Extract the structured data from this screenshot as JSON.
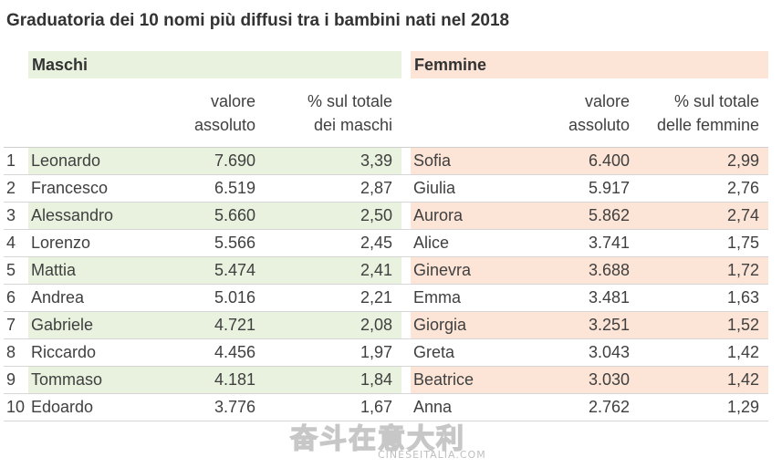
{
  "title": "Graduatoria dei 10 nomi più diffusi tra i bambini nati nel 2018",
  "sections": {
    "males": "Maschi",
    "females": "Femmine"
  },
  "columns": {
    "males_abs": [
      "valore",
      "assoluto"
    ],
    "males_pct": [
      "% sul totale",
      "dei maschi"
    ],
    "females_abs": [
      "valore",
      "assoluto"
    ],
    "females_pct": [
      "% sul totale",
      "delle femmine"
    ]
  },
  "rows": [
    {
      "rank": "1",
      "male_name": "Leonardo",
      "male_abs": "7.690",
      "male_pct": "3,39",
      "female_name": "Sofia",
      "female_abs": "6.400",
      "female_pct": "2,99"
    },
    {
      "rank": "2",
      "male_name": "Francesco",
      "male_abs": "6.519",
      "male_pct": "2,87",
      "female_name": "Giulia",
      "female_abs": "5.917",
      "female_pct": "2,76"
    },
    {
      "rank": "3",
      "male_name": "Alessandro",
      "male_abs": "5.660",
      "male_pct": "2,50",
      "female_name": "Aurora",
      "female_abs": "5.862",
      "female_pct": "2,74"
    },
    {
      "rank": "4",
      "male_name": "Lorenzo",
      "male_abs": "5.566",
      "male_pct": "2,45",
      "female_name": "Alice",
      "female_abs": "3.741",
      "female_pct": "1,75"
    },
    {
      "rank": "5",
      "male_name": "Mattia",
      "male_abs": "5.474",
      "male_pct": "2,41",
      "female_name": "Ginevra",
      "female_abs": "3.688",
      "female_pct": "1,72"
    },
    {
      "rank": "6",
      "male_name": "Andrea",
      "male_abs": "5.016",
      "male_pct": "2,21",
      "female_name": "Emma",
      "female_abs": "3.481",
      "female_pct": "1,63"
    },
    {
      "rank": "7",
      "male_name": "Gabriele",
      "male_abs": "4.721",
      "male_pct": "2,08",
      "female_name": "Giorgia",
      "female_abs": "3.251",
      "female_pct": "1,52"
    },
    {
      "rank": "8",
      "male_name": "Riccardo",
      "male_abs": "4.456",
      "male_pct": "1,97",
      "female_name": "Greta",
      "female_abs": "3.043",
      "female_pct": "1,42"
    },
    {
      "rank": "9",
      "male_name": "Tommaso",
      "male_abs": "4.181",
      "male_pct": "1,84",
      "female_name": "Beatrice",
      "female_abs": "3.030",
      "female_pct": "1,42"
    },
    {
      "rank": "10",
      "male_name": "Edoardo",
      "male_abs": "3.776",
      "male_pct": "1,67",
      "female_name": "Anna",
      "female_abs": "2.762",
      "female_pct": "1,29"
    }
  ],
  "colors": {
    "male_band": "#e8f2de",
    "female_band": "#fce4d6"
  },
  "watermark": {
    "chinese": "奋斗在意大利",
    "latin": "CINESEITALIA.COM"
  }
}
